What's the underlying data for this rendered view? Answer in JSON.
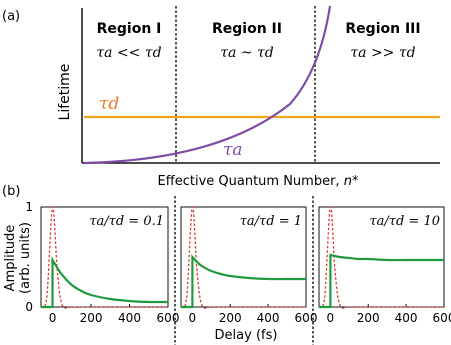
{
  "colors": {
    "curve": "#7d4ea6",
    "flat": "#f2a51e",
    "tau_d_label": "#f0782d",
    "decay": "#1f9a3c",
    "pulse": "#d93a3a",
    "axis": "#111111"
  },
  "panel_a": {
    "label": "(a)",
    "ylabel": "Lifetime",
    "xlabel_text": "Effective Quantum Number, ",
    "xlabel_sym": "n*",
    "regions": [
      {
        "title": "Region I",
        "relation": "τa << τd"
      },
      {
        "title": "Region II",
        "relation": "τa ~ τd"
      },
      {
        "title": "Region III",
        "relation": "τa >> τd"
      }
    ],
    "tau_d": "τd",
    "tau_a": "τa"
  },
  "panel_b": {
    "label": "(b)",
    "ylabel1": "Amplitude",
    "ylabel2": "(arb. units)",
    "xlabel": "Delay (fs)",
    "yticks": [
      "0",
      "1"
    ],
    "ratios": [
      "τa/τd = 0.1",
      "τa/τd = 1",
      "τa/τd = 10"
    ]
  },
  "chart_data": [
    {
      "type": "line",
      "title": "",
      "xlabel": "Effective Quantum Number, n*",
      "ylabel": "Lifetime",
      "series": [
        {
          "name": "τd",
          "shape": "constant"
        },
        {
          "name": "τa",
          "shape": "increasing"
        }
      ]
    },
    {
      "type": "line",
      "annotation": "τa/τd = 0.1",
      "xlabel": "Delay (fs)",
      "ylabel": "Amplitude (arb. units)",
      "xlim": [
        -60,
        600
      ],
      "ylim": [
        0,
        1
      ],
      "xticks": [
        0,
        200,
        400,
        600
      ],
      "x": [
        -60,
        -30,
        0,
        25,
        50,
        100,
        150,
        200,
        300,
        400,
        500,
        600
      ],
      "series": [
        {
          "values": [
            0,
            0,
            0.47,
            0.39,
            0.32,
            0.22,
            0.16,
            0.12,
            0.08,
            0.06,
            0.05,
            0.05
          ]
        },
        {
          "values": [
            0,
            0.1,
            1.0,
            0.35,
            0.02,
            0,
            0,
            0,
            0,
            0,
            0,
            0
          ]
        }
      ]
    },
    {
      "type": "line",
      "annotation": "τa/τd = 1",
      "xlabel": "Delay (fs)",
      "ylabel": "Amplitude (arb. units)",
      "xlim": [
        -60,
        600
      ],
      "ylim": [
        0,
        1
      ],
      "xticks": [
        0,
        200,
        400,
        600
      ],
      "x": [
        -60,
        -30,
        0,
        25,
        50,
        100,
        150,
        200,
        300,
        400,
        500,
        600
      ],
      "series": [
        {
          "values": [
            0,
            0,
            0.5,
            0.45,
            0.41,
            0.36,
            0.33,
            0.31,
            0.29,
            0.28,
            0.28,
            0.28
          ]
        },
        {
          "values": [
            0,
            0.1,
            1.0,
            0.35,
            0.02,
            0,
            0,
            0,
            0,
            0,
            0,
            0
          ]
        }
      ]
    },
    {
      "type": "line",
      "annotation": "τa/τd = 10",
      "xlabel": "Delay (fs)",
      "ylabel": "Amplitude (arb. units)",
      "xlim": [
        -60,
        600
      ],
      "ylim": [
        0,
        1
      ],
      "xticks": [
        0,
        200,
        400,
        600
      ],
      "x": [
        -60,
        -30,
        0,
        25,
        50,
        100,
        150,
        200,
        300,
        400,
        500,
        600
      ],
      "series": [
        {
          "values": [
            0,
            0,
            0.52,
            0.51,
            0.5,
            0.49,
            0.48,
            0.48,
            0.47,
            0.47,
            0.47,
            0.47
          ]
        },
        {
          "values": [
            0,
            0.1,
            1.0,
            0.35,
            0.02,
            0,
            0,
            0,
            0,
            0,
            0,
            0
          ]
        }
      ]
    }
  ]
}
